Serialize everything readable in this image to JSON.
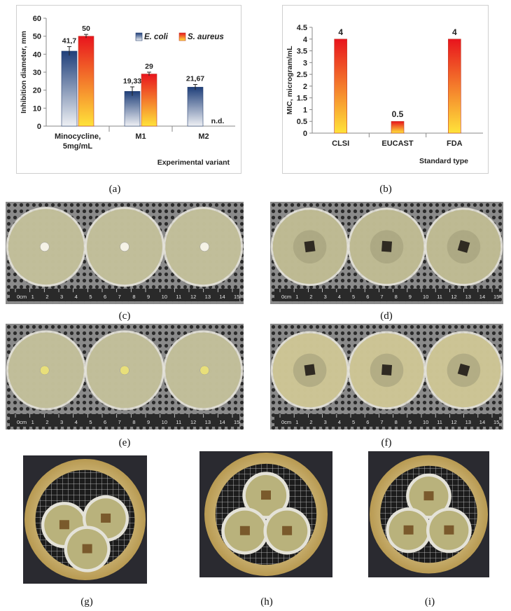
{
  "captions": {
    "a": "(a)",
    "b": "(b)",
    "c": "(c)",
    "d": "(d)",
    "e": "(e)",
    "f": "(f)",
    "g": "(g)",
    "h": "(h)",
    "i": "(i)"
  },
  "colors": {
    "ecoli_top": "#1f3f7a",
    "ecoli_bottom": "#eef0f4",
    "saureus_top": "#e8141d",
    "saureus_bottom": "#ffe33a",
    "agar": "#c6bf86",
    "plate_rim": "#e9e6d6",
    "mesh_bg": "#6d6d6d",
    "ruler": "#2a2a2a"
  },
  "chart_data": [
    {
      "id": "a",
      "type": "bar",
      "categories": [
        "Minocycline,\n5mg/mL",
        "M1",
        "M2"
      ],
      "series": [
        {
          "name": "E. coli",
          "values": [
            41.7,
            19.33,
            21.67
          ],
          "labels": [
            "41,7",
            "19,33",
            "21,67"
          ],
          "errors": [
            2.5,
            2.5,
            1.5
          ]
        },
        {
          "name": "S. aureus",
          "values": [
            50,
            29,
            null
          ],
          "labels": [
            "50",
            "29",
            "n.d."
          ],
          "errors": [
            1.0,
            1.0,
            0
          ]
        }
      ],
      "xlabel": "Experimental variant",
      "ylabel": "Inhibition diameter, mm",
      "ylim": [
        0,
        60
      ],
      "yticks": [
        0,
        10,
        20,
        30,
        40,
        50,
        60
      ],
      "legend": "top-right",
      "grid": false
    },
    {
      "id": "b",
      "type": "bar",
      "categories": [
        "CLSI",
        "EUCAST",
        "FDA"
      ],
      "values": [
        4,
        0.5,
        4
      ],
      "labels": [
        "4",
        "0.5",
        "4"
      ],
      "xlabel": "Standard type",
      "ylabel": "MIC, microgram/mL",
      "ylim": [
        0,
        4.5
      ],
      "yticks": [
        0,
        0.5,
        1,
        1.5,
        2,
        2.5,
        3,
        3.5,
        4,
        4.5
      ],
      "ytick_labels": [
        "0",
        "0.5",
        "1",
        "1.5",
        "2",
        "2.5",
        "3",
        "3.5",
        "4",
        "4.5"
      ],
      "grid": false
    }
  ],
  "photos": {
    "c": {
      "ruler_numbers": [
        "0cm",
        "1",
        "2",
        "3",
        "4",
        "5",
        "6",
        "7",
        "8",
        "9",
        "10",
        "11",
        "12",
        "13",
        "14",
        "15"
      ]
    },
    "d": {
      "ruler_numbers": [
        "0cm",
        "1",
        "2",
        "3",
        "4",
        "5",
        "6",
        "7",
        "8",
        "9",
        "10",
        "11",
        "12",
        "13",
        "14",
        "15"
      ]
    },
    "e": {
      "ruler_numbers": [
        "0cm",
        "1",
        "2",
        "3",
        "4",
        "5",
        "6",
        "7",
        "8",
        "9",
        "10",
        "11",
        "12",
        "13",
        "14",
        "15"
      ]
    },
    "f": {
      "ruler_numbers": [
        "0cm",
        "1",
        "2",
        "3",
        "4",
        "5",
        "6",
        "7",
        "8",
        "9",
        "10",
        "11",
        "12",
        "13",
        "14",
        "15"
      ]
    }
  }
}
